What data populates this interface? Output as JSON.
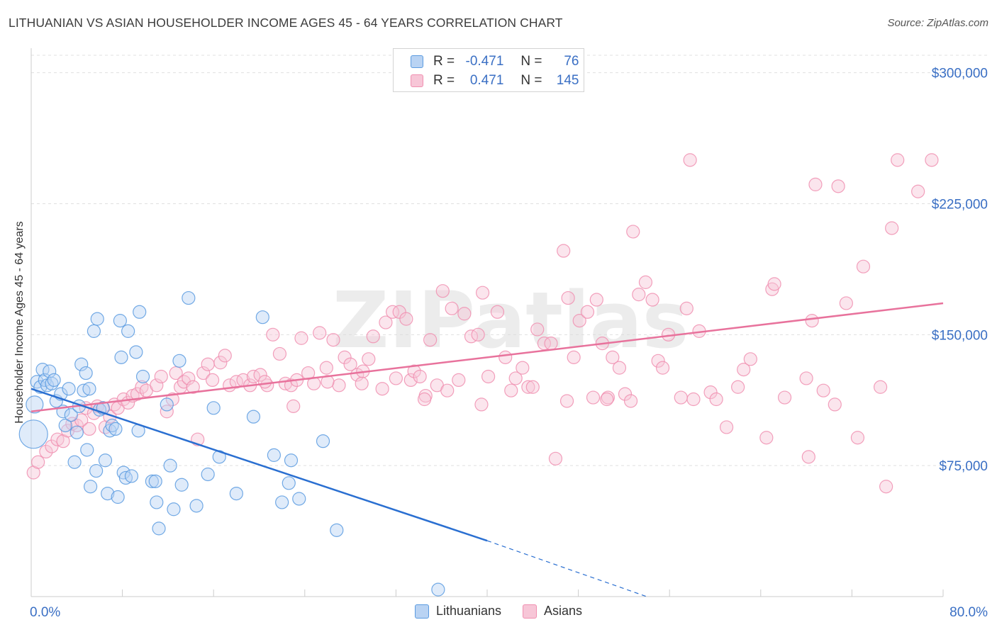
{
  "title": "LITHUANIAN VS ASIAN HOUSEHOLDER INCOME AGES 45 - 64 YEARS CORRELATION CHART",
  "source": "Source: ZipAtlas.com",
  "watermark": "ZIPatlas",
  "colors": {
    "lithuanians": "#5b9be0",
    "lithuanians_fill": "#b9d3f3",
    "asians": "#f08fb0",
    "asians_fill": "#f7c6d7",
    "blue_line": "#2a6fd1",
    "pink_line": "#e8729c",
    "axis_label": "#3a6fc4"
  },
  "legend": {
    "rows": [
      {
        "r_label": "R =",
        "r_value": "-0.471",
        "n_label": "N =",
        "n_value": "76"
      },
      {
        "r_label": "R =",
        "r_value": "0.471",
        "n_label": "N =",
        "n_value": "145"
      }
    ]
  },
  "bottom_legend": [
    "Lithuanians",
    "Asians"
  ],
  "chart_data": {
    "type": "scatter",
    "title": "LITHUANIAN VS ASIAN HOUSEHOLDER INCOME AGES 45 - 64 YEARS CORRELATION CHART",
    "xlabel": "",
    "ylabel": "Householder Income Ages 45 - 64 years",
    "xlim": [
      0,
      80
    ],
    "ylim": [
      0,
      310000
    ],
    "x_tick_labels": [
      "0.0%",
      "80.0%"
    ],
    "y_ticks": [
      {
        "value": 75000,
        "label": "$75,000"
      },
      {
        "value": 150000,
        "label": "$150,000"
      },
      {
        "value": 225000,
        "label": "$225,000"
      },
      {
        "value": 300000,
        "label": "$300,000"
      }
    ],
    "grid": "horizontal-dashed",
    "series": [
      {
        "name": "Lithuanians",
        "trend": {
          "x": [
            0,
            40
          ],
          "y": [
            119000,
            32000
          ],
          "dashed_to": [
            54,
            0
          ]
        },
        "points": [
          [
            0.2,
            93000
          ],
          [
            0.3,
            110000
          ],
          [
            0.5,
            123000
          ],
          [
            0.8,
            120000
          ],
          [
            1.0,
            130000
          ],
          [
            1.2,
            124000
          ],
          [
            1.4,
            121000
          ],
          [
            1.6,
            129000
          ],
          [
            1.8,
            122000
          ],
          [
            2.0,
            124000
          ],
          [
            2.2,
            112000
          ],
          [
            2.6,
            116000
          ],
          [
            2.8,
            106000
          ],
          [
            3.0,
            98000
          ],
          [
            3.3,
            119000
          ],
          [
            3.5,
            104000
          ],
          [
            3.8,
            77000
          ],
          [
            4.0,
            94000
          ],
          [
            4.2,
            109000
          ],
          [
            4.4,
            133000
          ],
          [
            4.6,
            118000
          ],
          [
            4.8,
            128000
          ],
          [
            4.9,
            84000
          ],
          [
            5.1,
            119000
          ],
          [
            5.2,
            63000
          ],
          [
            5.5,
            152000
          ],
          [
            5.8,
            159000
          ],
          [
            5.7,
            72000
          ],
          [
            6.0,
            107000
          ],
          [
            6.3,
            108000
          ],
          [
            6.5,
            78000
          ],
          [
            6.7,
            59000
          ],
          [
            6.9,
            95000
          ],
          [
            7.1,
            98000
          ],
          [
            7.4,
            96000
          ],
          [
            7.6,
            57000
          ],
          [
            7.9,
            137000
          ],
          [
            7.8,
            158000
          ],
          [
            8.1,
            71000
          ],
          [
            8.3,
            68000
          ],
          [
            8.5,
            152000
          ],
          [
            8.8,
            69000
          ],
          [
            9.2,
            140000
          ],
          [
            9.4,
            95000
          ],
          [
            9.5,
            163000
          ],
          [
            9.8,
            126000
          ],
          [
            10.6,
            66000
          ],
          [
            10.9,
            66000
          ],
          [
            11.0,
            54000
          ],
          [
            11.2,
            39000
          ],
          [
            11.9,
            110000
          ],
          [
            12.2,
            75000
          ],
          [
            12.5,
            50000
          ],
          [
            13.2,
            64000
          ],
          [
            13.0,
            135000
          ],
          [
            13.8,
            171000
          ],
          [
            14.5,
            52000
          ],
          [
            15.5,
            70000
          ],
          [
            16.0,
            108000
          ],
          [
            16.5,
            80000
          ],
          [
            18.0,
            59000
          ],
          [
            19.5,
            103000
          ],
          [
            20.3,
            160000
          ],
          [
            21.3,
            81000
          ],
          [
            22.0,
            54000
          ],
          [
            22.6,
            65000
          ],
          [
            22.8,
            78000
          ],
          [
            23.5,
            56000
          ],
          [
            25.6,
            89000
          ],
          [
            26.8,
            38000
          ],
          [
            35.7,
            4000
          ]
        ]
      },
      {
        "name": "Asians",
        "trend": {
          "x": [
            0,
            80
          ],
          "y": [
            106000,
            168000
          ]
        },
        "points": [
          [
            0.2,
            71000
          ],
          [
            0.6,
            77000
          ],
          [
            1.3,
            83000
          ],
          [
            1.8,
            86000
          ],
          [
            2.3,
            90000
          ],
          [
            2.8,
            89000
          ],
          [
            3.2,
            95000
          ],
          [
            3.6,
            99000
          ],
          [
            4.0,
            98000
          ],
          [
            4.4,
            101000
          ],
          [
            4.8,
            108000
          ],
          [
            5.1,
            96000
          ],
          [
            5.5,
            105000
          ],
          [
            5.8,
            109000
          ],
          [
            6.3,
            108000
          ],
          [
            6.5,
            97000
          ],
          [
            6.9,
            103000
          ],
          [
            7.3,
            110000
          ],
          [
            7.6,
            108000
          ],
          [
            8.1,
            113000
          ],
          [
            8.5,
            111000
          ],
          [
            8.9,
            115000
          ],
          [
            9.3,
            116000
          ],
          [
            9.7,
            120000
          ],
          [
            10.1,
            118000
          ],
          [
            11.0,
            121000
          ],
          [
            11.4,
            126000
          ],
          [
            11.9,
            106000
          ],
          [
            12.4,
            113000
          ],
          [
            12.7,
            128000
          ],
          [
            13.1,
            120000
          ],
          [
            13.4,
            123000
          ],
          [
            13.8,
            125000
          ],
          [
            14.2,
            120000
          ],
          [
            14.6,
            90000
          ],
          [
            15.1,
            128000
          ],
          [
            15.5,
            133000
          ],
          [
            15.9,
            124000
          ],
          [
            16.6,
            134000
          ],
          [
            17.0,
            138000
          ],
          [
            17.4,
            121000
          ],
          [
            18.0,
            123000
          ],
          [
            18.6,
            124000
          ],
          [
            19.2,
            121000
          ],
          [
            19.5,
            126000
          ],
          [
            20.1,
            127000
          ],
          [
            20.7,
            121000
          ],
          [
            21.2,
            150000
          ],
          [
            21.8,
            139000
          ],
          [
            22.3,
            122000
          ],
          [
            22.8,
            121000
          ],
          [
            23.3,
            124000
          ],
          [
            23.7,
            148000
          ],
          [
            24.3,
            128000
          ],
          [
            24.8,
            122000
          ],
          [
            25.3,
            151000
          ],
          [
            25.9,
            131000
          ],
          [
            26.5,
            147000
          ],
          [
            27.0,
            121000
          ],
          [
            27.5,
            137000
          ],
          [
            28.0,
            133000
          ],
          [
            28.6,
            127000
          ],
          [
            29.1,
            129000
          ],
          [
            29.6,
            136000
          ],
          [
            30.0,
            149000
          ],
          [
            30.8,
            119000
          ],
          [
            31.1,
            157000
          ],
          [
            31.7,
            163000
          ],
          [
            32.3,
            163000
          ],
          [
            32.9,
            159000
          ],
          [
            33.3,
            124000
          ],
          [
            33.6,
            129000
          ],
          [
            34.1,
            126000
          ],
          [
            34.6,
            115000
          ],
          [
            35.0,
            147000
          ],
          [
            35.6,
            121000
          ],
          [
            36.1,
            175000
          ],
          [
            36.9,
            165000
          ],
          [
            37.5,
            124000
          ],
          [
            38.0,
            162000
          ],
          [
            38.6,
            149000
          ],
          [
            39.2,
            150000
          ],
          [
            39.6,
            174000
          ],
          [
            40.1,
            126000
          ],
          [
            40.9,
            163000
          ],
          [
            41.6,
            137000
          ],
          [
            42.1,
            118000
          ],
          [
            42.5,
            125000
          ],
          [
            43.1,
            131000
          ],
          [
            43.6,
            120000
          ],
          [
            44.4,
            153000
          ],
          [
            45.0,
            145000
          ],
          [
            45.6,
            145000
          ],
          [
            46.0,
            79000
          ],
          [
            46.7,
            198000
          ],
          [
            47.1,
            171000
          ],
          [
            47.6,
            137000
          ],
          [
            48.1,
            158000
          ],
          [
            48.8,
            163000
          ],
          [
            49.3,
            114000
          ],
          [
            49.6,
            170000
          ],
          [
            50.1,
            145000
          ],
          [
            50.6,
            114000
          ],
          [
            51.0,
            137000
          ],
          [
            51.6,
            131000
          ],
          [
            52.1,
            116000
          ],
          [
            52.6,
            112000
          ],
          [
            53.3,
            173000
          ],
          [
            53.9,
            180000
          ],
          [
            54.5,
            170000
          ],
          [
            55.0,
            135000
          ],
          [
            55.4,
            131000
          ],
          [
            55.9,
            150000
          ],
          [
            57.0,
            114000
          ],
          [
            57.5,
            165000
          ],
          [
            58.1,
            113000
          ],
          [
            58.6,
            152000
          ],
          [
            59.6,
            117000
          ],
          [
            60.1,
            113000
          ],
          [
            61.0,
            97000
          ],
          [
            62.0,
            120000
          ],
          [
            62.5,
            130000
          ],
          [
            63.1,
            136000
          ],
          [
            64.5,
            91000
          ],
          [
            65.0,
            176000
          ],
          [
            65.2,
            179000
          ],
          [
            66.1,
            114000
          ],
          [
            68.2,
            80000
          ],
          [
            68.0,
            125000
          ],
          [
            68.5,
            158000
          ],
          [
            69.5,
            118000
          ],
          [
            70.5,
            110000
          ],
          [
            71.5,
            168000
          ],
          [
            72.5,
            91000
          ],
          [
            73.0,
            189000
          ],
          [
            74.5,
            120000
          ],
          [
            75.0,
            63000
          ],
          [
            75.5,
            211000
          ],
          [
            76.0,
            250000
          ],
          [
            77.8,
            232000
          ],
          [
            79.0,
            250000
          ],
          [
            57.8,
            250000
          ],
          [
            68.8,
            236000
          ],
          [
            70.8,
            235000
          ],
          [
            52.8,
            209000
          ],
          [
            50.5,
            113000
          ],
          [
            47.0,
            112000
          ],
          [
            44.0,
            120000
          ],
          [
            39.5,
            110000
          ],
          [
            36.5,
            118000
          ],
          [
            34.5,
            113000
          ],
          [
            32.0,
            125000
          ],
          [
            29.0,
            122000
          ],
          [
            26.0,
            123000
          ],
          [
            23.0,
            109000
          ],
          [
            20.5,
            123000
          ]
        ]
      }
    ]
  }
}
